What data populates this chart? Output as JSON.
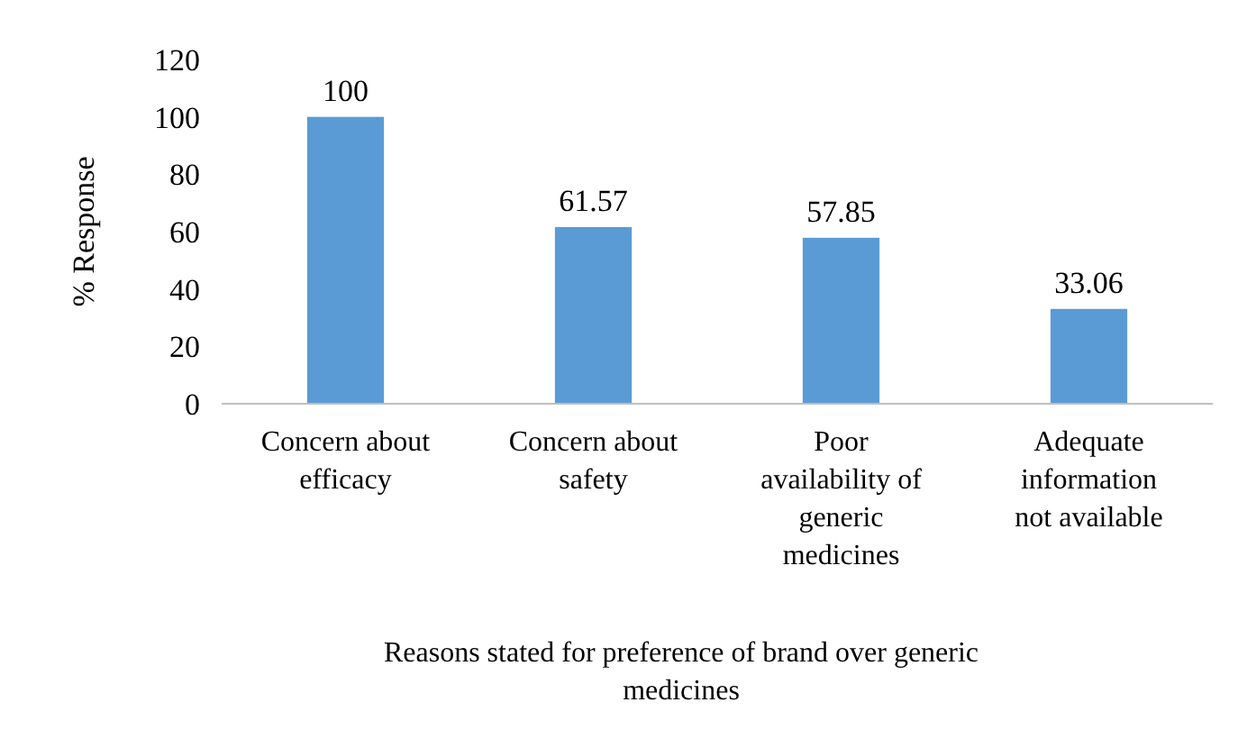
{
  "chart_data": {
    "type": "bar",
    "xlabel": "Reasons stated for preference of brand over generic medicines",
    "ylabel": "% Response",
    "categories": [
      "Concern about efficacy",
      "Concern about safety",
      "Poor availability of generic medicines",
      "Adequate information not available"
    ],
    "values": [
      100,
      61.57,
      57.85,
      33.06
    ],
    "color": "#5b9bd5",
    "ylim": [
      0,
      120
    ],
    "yticks": [
      0,
      20,
      40,
      60,
      80,
      100,
      120
    ],
    "grid": false,
    "data_labels": true
  }
}
